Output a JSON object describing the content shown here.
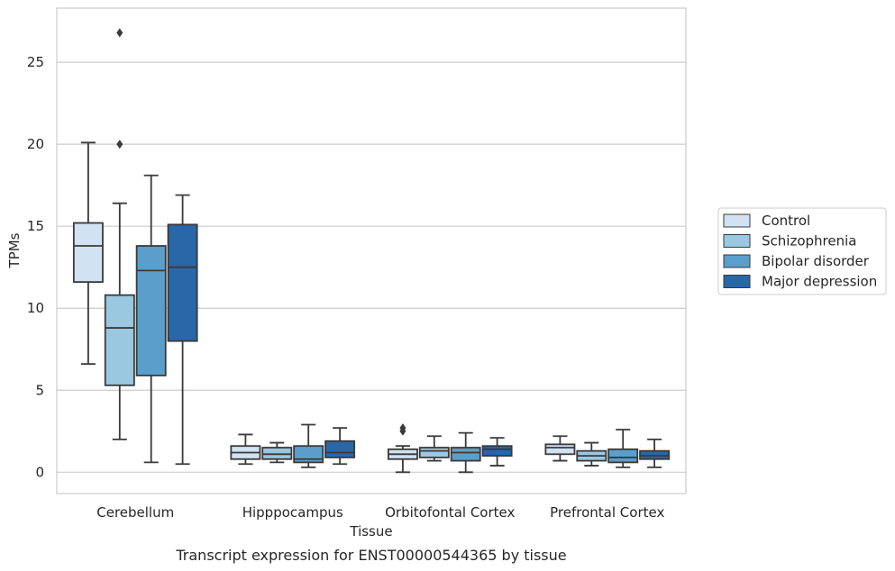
{
  "chart_data": {
    "type": "box",
    "title": "",
    "caption": "Transcript expression for ENST00000544365 by tissue",
    "xlabel": "Tissue",
    "ylabel": "TPMs",
    "ylim": [
      -1.3,
      28.3
    ],
    "yticks": [
      0,
      5,
      10,
      15,
      20,
      25
    ],
    "grid": "horizontal",
    "legend_position": "right",
    "categories": [
      "Cerebellum",
      "Hipppocampus",
      "Orbitofontal Cortex",
      "Prefrontal Cortex"
    ],
    "series": [
      {
        "name": "Control",
        "color": "#d1e2f2",
        "boxes": [
          {
            "whislo": 6.6,
            "q1": 11.6,
            "med": 13.8,
            "q3": 15.2,
            "whishi": 20.1,
            "fliers": []
          },
          {
            "whislo": 0.5,
            "q1": 0.8,
            "med": 1.2,
            "q3": 1.6,
            "whishi": 2.3,
            "fliers": []
          },
          {
            "whislo": 0.0,
            "q1": 0.8,
            "med": 1.1,
            "q3": 1.4,
            "whishi": 1.6,
            "fliers": [
              2.5,
              2.7
            ]
          },
          {
            "whislo": 0.7,
            "q1": 1.1,
            "med": 1.5,
            "q3": 1.7,
            "whishi": 2.2,
            "fliers": []
          }
        ]
      },
      {
        "name": "Schizophrenia",
        "color": "#9ac8e0",
        "boxes": [
          {
            "whislo": 2.0,
            "q1": 5.3,
            "med": 8.8,
            "q3": 10.8,
            "whishi": 16.4,
            "fliers": [
              20.0,
              26.8
            ]
          },
          {
            "whislo": 0.6,
            "q1": 0.8,
            "med": 1.1,
            "q3": 1.5,
            "whishi": 1.8,
            "fliers": []
          },
          {
            "whislo": 0.7,
            "q1": 0.9,
            "med": 1.3,
            "q3": 1.5,
            "whishi": 2.2,
            "fliers": []
          },
          {
            "whislo": 0.4,
            "q1": 0.7,
            "med": 1.0,
            "q3": 1.3,
            "whishi": 1.8,
            "fliers": []
          }
        ]
      },
      {
        "name": "Bipolar disorder",
        "color": "#5a9fcc",
        "boxes": [
          {
            "whislo": 0.6,
            "q1": 5.9,
            "med": 12.3,
            "q3": 13.8,
            "whishi": 18.1,
            "fliers": []
          },
          {
            "whislo": 0.3,
            "q1": 0.6,
            "med": 0.8,
            "q3": 1.6,
            "whishi": 2.9,
            "fliers": []
          },
          {
            "whislo": 0.0,
            "q1": 0.7,
            "med": 1.2,
            "q3": 1.5,
            "whishi": 2.4,
            "fliers": []
          },
          {
            "whislo": 0.3,
            "q1": 0.6,
            "med": 0.9,
            "q3": 1.4,
            "whishi": 2.6,
            "fliers": []
          }
        ]
      },
      {
        "name": "Major depression",
        "color": "#2967a8",
        "boxes": [
          {
            "whislo": 0.5,
            "q1": 8.0,
            "med": 12.5,
            "q3": 15.1,
            "whishi": 16.9,
            "fliers": []
          },
          {
            "whislo": 0.5,
            "q1": 0.9,
            "med": 1.2,
            "q3": 1.9,
            "whishi": 2.7,
            "fliers": []
          },
          {
            "whislo": 0.4,
            "q1": 1.0,
            "med": 1.4,
            "q3": 1.6,
            "whishi": 2.1,
            "fliers": []
          },
          {
            "whislo": 0.3,
            "q1": 0.8,
            "med": 1.0,
            "q3": 1.3,
            "whishi": 2.0,
            "fliers": []
          }
        ]
      }
    ]
  }
}
